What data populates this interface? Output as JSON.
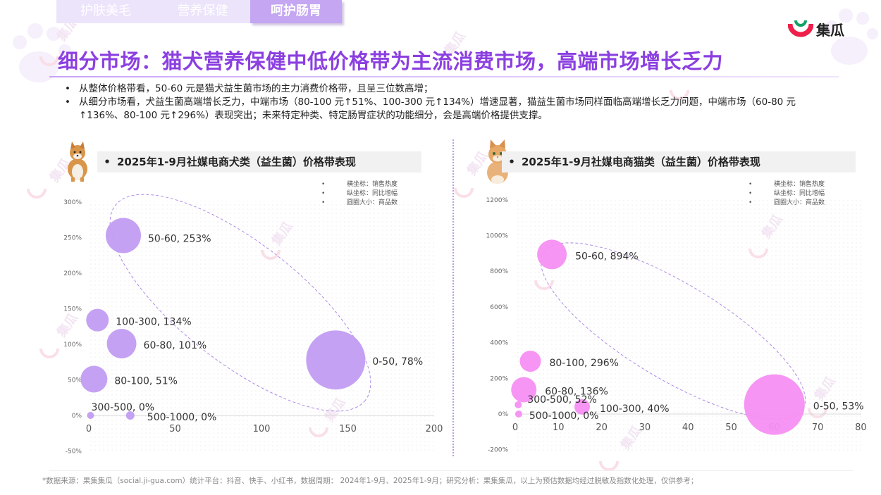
{
  "tabs": [
    "护肤美毛",
    "营养保健",
    "呵护肠胃"
  ],
  "brand": {
    "name": "集瓜",
    "watermark": "集瓜"
  },
  "title": "细分市场：猫犬营养保健中低价格带为主流消费市场，高端市场增长乏力",
  "bullets": [
    "从整体价格带看，50-60 元是猫犬益生菌市场的主力消费价格带，且呈三位数高增；",
    "从细分市场看，犬益生菌高端增长乏力，中端市场（80-100 元↑51%、100-300 元↑134%）增速显著，猫益生菌市场同样面临高端增长乏力问题，中端市场（60-80 元↑136%、80-100 元↑296%）表现突出；未来特定种类、特定肠胃症状的功能细分，会是高端价格提供支撑。"
  ],
  "legend": [
    {
      "bullet": "•",
      "text": "横坐标：销售热度"
    },
    {
      "bullet": "•",
      "text": "纵坐标：同比增幅"
    },
    {
      "bullet": "•",
      "text": "圆圈大小：商品数"
    }
  ],
  "footer": "*数据来源：果集集瓜（social.ji-gua.com）统计平台：抖音、快手、小红书，数据周期： 2024年1-9月、2025年1-9月；研究分析：果集集瓜，以上为预估数据均经过脱敏及指数化处理，仅供参考；",
  "colors": {
    "accent": "#8b3fe0",
    "dog_bubble": "#c29cf3",
    "cat_bubble": "#f58ff2",
    "ellipse": "#b08ae6"
  },
  "chart_data": [
    {
      "type": "scatter",
      "title": "2025年1-9月社媒电商犬类（益生菌）价格带表现",
      "bullet": "•",
      "xlim": [
        0,
        200
      ],
      "ylim": [
        -40,
        300
      ],
      "xticks": [
        0,
        50,
        100,
        150,
        200
      ],
      "yticks": [
        -50,
        0,
        50,
        100,
        150,
        200,
        250,
        300
      ],
      "ytick_labels": [
        "-50%",
        "0%",
        "50%",
        "100%",
        "150%",
        "200%",
        "250%",
        "300%"
      ],
      "points": [
        {
          "label": "50-60, 253%",
          "x": 20,
          "y": 253,
          "size": 25
        },
        {
          "label": "100-300, 134%",
          "x": 5,
          "y": 134,
          "size": 16
        },
        {
          "label": "60-80, 101%",
          "x": 19,
          "y": 101,
          "size": 21
        },
        {
          "label": "80-100, 51%",
          "x": 3,
          "y": 51,
          "size": 19
        },
        {
          "label": "0-50, 78%",
          "x": 143,
          "y": 78,
          "size": 42
        },
        {
          "label": "300-500, 0%",
          "x": 1,
          "y": 0,
          "size": 5
        },
        {
          "label": "500-1000, 0%",
          "x": 24,
          "y": 0,
          "size": 6
        }
      ]
    },
    {
      "type": "scatter",
      "title": "2025年1-9月社媒电商猫类（益生菌）价格带表现",
      "bullet": "•",
      "xlim": [
        0,
        80
      ],
      "ylim": [
        -200,
        1200
      ],
      "xticks": [
        0,
        10,
        20,
        30,
        40,
        50,
        60,
        70,
        80
      ],
      "yticks": [
        -200,
        0,
        200,
        400,
        600,
        800,
        1000,
        1200
      ],
      "ytick_labels": [
        "-200%",
        "0%",
        "200%",
        "400%",
        "600%",
        "800%",
        "1000%",
        "1200%"
      ],
      "points": [
        {
          "label": "50-60, 894%",
          "x": 8.5,
          "y": 894,
          "size": 21
        },
        {
          "label": "80-100, 296%",
          "x": 3.5,
          "y": 296,
          "size": 15
        },
        {
          "label": "60-80, 136%",
          "x": 2,
          "y": 136,
          "size": 18
        },
        {
          "label": "300-500, 52%",
          "x": 0.7,
          "y": 52,
          "size": 5
        },
        {
          "label": "100-300, 40%",
          "x": 15.5,
          "y": 40,
          "size": 11
        },
        {
          "label": "500-1000, 0%",
          "x": 0.8,
          "y": 0,
          "size": 5
        },
        {
          "label": "0-50, 53%",
          "x": 60,
          "y": 53,
          "size": 43
        }
      ]
    }
  ]
}
